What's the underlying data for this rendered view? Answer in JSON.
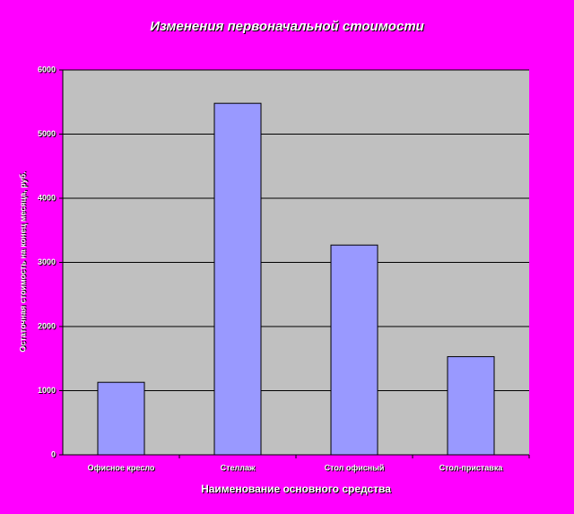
{
  "chart_data": {
    "type": "bar",
    "title": "Изменения первоначальной стоимости",
    "x_label": "Наименование основного средства",
    "y_label": "Остаточная стоимость на конец месяца, руб.",
    "categories": [
      "Офисное кресло",
      "Стеллаж",
      "Стол офисный",
      "Стол-приставка"
    ],
    "values": [
      1130,
      5480,
      3270,
      1530
    ],
    "color": "#9999ff",
    "ylim": [
      0,
      6000
    ],
    "yticks": [
      0,
      1000,
      2000,
      3000,
      4000,
      5000,
      6000
    ],
    "grid": true
  }
}
